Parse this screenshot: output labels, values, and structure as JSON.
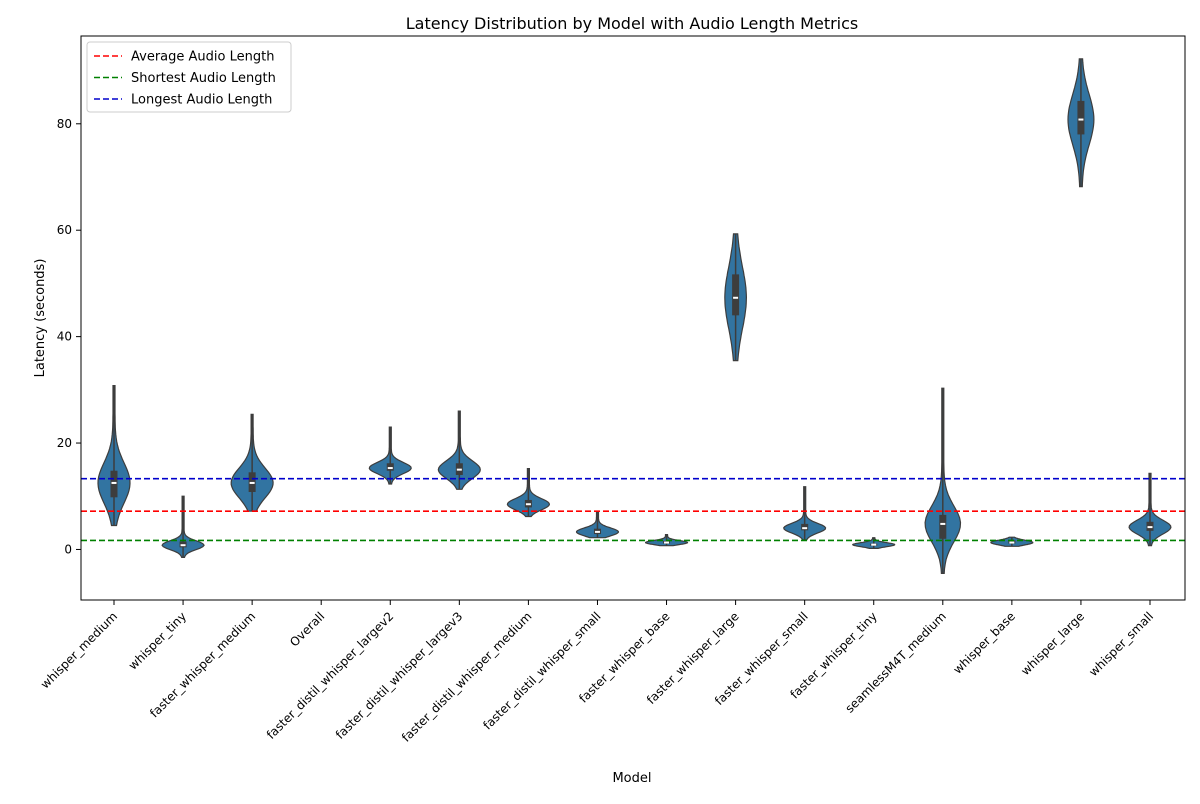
{
  "chart_data": {
    "type": "violin",
    "title": "Latency Distribution by Model with Audio Length Metrics",
    "xlabel": "Model",
    "ylabel": "Latency (seconds)",
    "ylim": [
      -9.5,
      96.5
    ],
    "yticks": [
      0,
      20,
      40,
      60,
      80
    ],
    "grid": false,
    "legend_position": "upper-left",
    "categories": [
      "whisper_medium",
      "whisper_tiny",
      "faster_whisper_medium",
      "Overall",
      "faster_distil_whisper_largev2",
      "faster_distil_whisper_largev3",
      "faster_distil_whisper_medium",
      "faster_distil_whisper_small",
      "faster_whisper_base",
      "faster_whisper_large",
      "faster_whisper_small",
      "faster_whisper_tiny",
      "seamlessM4T_medium",
      "whisper_base",
      "whisper_large",
      "whisper_small"
    ],
    "distributions": [
      {
        "min": 4.5,
        "q1": 9.8,
        "median": 12.5,
        "q3": 14.8,
        "max": 30.8
      },
      {
        "min": -1.5,
        "q1": 0.4,
        "median": 0.8,
        "q3": 1.5,
        "max": 10.0
      },
      {
        "min": 7.2,
        "q1": 10.8,
        "median": 12.5,
        "q3": 14.5,
        "max": 25.4
      },
      null,
      {
        "min": 12.3,
        "q1": 14.8,
        "median": 15.3,
        "q3": 16.2,
        "max": 23.0
      },
      {
        "min": 11.3,
        "q1": 14.0,
        "median": 15.0,
        "q3": 16.2,
        "max": 26.0
      },
      {
        "min": 6.2,
        "q1": 7.9,
        "median": 8.5,
        "q3": 9.3,
        "max": 15.2
      },
      {
        "min": 2.2,
        "q1": 2.9,
        "median": 3.3,
        "q3": 3.9,
        "max": 7.0
      },
      {
        "min": 0.7,
        "q1": 1.1,
        "median": 1.3,
        "q3": 1.6,
        "max": 2.8
      },
      {
        "min": 35.5,
        "q1": 44.0,
        "median": 47.3,
        "q3": 51.7,
        "max": 59.3
      },
      {
        "min": 1.8,
        "q1": 3.6,
        "median": 4.0,
        "q3": 4.8,
        "max": 11.8
      },
      {
        "min": 0.2,
        "q1": 0.7,
        "median": 0.9,
        "q3": 1.1,
        "max": 2.2
      },
      {
        "min": -4.5,
        "q1": 2.0,
        "median": 4.8,
        "q3": 6.5,
        "max": 30.3
      },
      {
        "min": 0.6,
        "q1": 1.1,
        "median": 1.3,
        "q3": 1.7,
        "max": 2.3
      },
      {
        "min": 68.2,
        "q1": 78.0,
        "median": 80.8,
        "q3": 84.3,
        "max": 92.2
      },
      {
        "min": 0.7,
        "q1": 3.5,
        "median": 4.2,
        "q3": 5.2,
        "max": 14.3
      }
    ],
    "violin_color": "#3274a1",
    "box_color": "#3d3d3d",
    "reference_lines": [
      {
        "name": "Average Audio Length",
        "value": 7.2,
        "color": "#ff0000"
      },
      {
        "name": "Shortest Audio Length",
        "value": 1.7,
        "color": "#008000"
      },
      {
        "name": "Longest Audio Length",
        "value": 13.3,
        "color": "#0000cc"
      }
    ]
  }
}
